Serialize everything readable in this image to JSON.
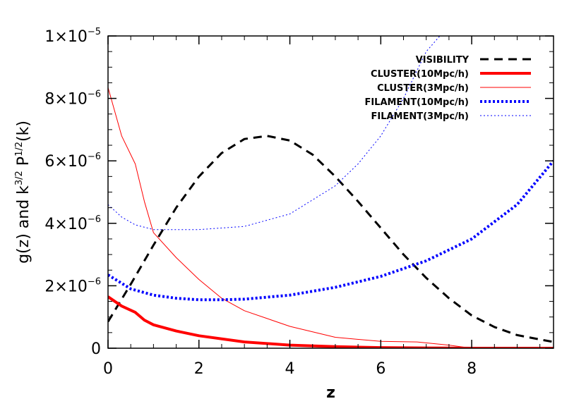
{
  "chart_data": {
    "type": "line",
    "xlabel": "z",
    "ylabel": {
      "main": "g(z)  and  k",
      "sup1": "3/2",
      "mid": " P",
      "sup2": "1/2",
      "tail": "(k)"
    },
    "xlim": [
      0,
      9.8
    ],
    "ylim": [
      0,
      1e-05
    ],
    "x_ticks": [
      {
        "value": 0,
        "label": "0"
      },
      {
        "value": 2,
        "label": "2"
      },
      {
        "value": 4,
        "label": "4"
      },
      {
        "value": 6,
        "label": "6"
      },
      {
        "value": 8,
        "label": "8"
      }
    ],
    "y_ticks": [
      {
        "value": 0,
        "label": "0",
        "mantissa": "",
        "exponent": ""
      },
      {
        "value": 2e-06,
        "label": "2×10⁻⁶",
        "mantissa": "2×10",
        "exponent": "−6"
      },
      {
        "value": 4e-06,
        "label": "4×10⁻⁶",
        "mantissa": "4×10",
        "exponent": "−6"
      },
      {
        "value": 6e-06,
        "label": "6×10⁻⁶",
        "mantissa": "6×10",
        "exponent": "−6"
      },
      {
        "value": 8e-06,
        "label": "8×10⁻⁶",
        "mantissa": "8×10",
        "exponent": "−6"
      },
      {
        "value": 1e-05,
        "label": "1×10⁻⁵",
        "mantissa": "1×10",
        "exponent": "−5"
      }
    ],
    "legend_position": "top-right",
    "series": [
      {
        "name": "VISIBILITY",
        "color": "#000000",
        "style": "dashed",
        "width": 3,
        "x": [
          0,
          0.5,
          1.0,
          1.5,
          2.0,
          2.5,
          3.0,
          3.5,
          4.0,
          4.5,
          5.0,
          5.5,
          6.0,
          6.5,
          7.0,
          7.5,
          8.0,
          8.5,
          9.0,
          9.5,
          9.8
        ],
        "y": [
          8.5e-07,
          2.05e-06,
          3.3e-06,
          4.5e-06,
          5.5e-06,
          6.25e-06,
          6.7e-06,
          6.8e-06,
          6.65e-06,
          6.2e-06,
          5.5e-06,
          4.7e-06,
          3.85e-06,
          3e-06,
          2.25e-06,
          1.6e-06,
          1.05e-06,
          6.8e-07,
          4.2e-07,
          2.8e-07,
          2e-07
        ]
      },
      {
        "name": "CLUSTER(10Mpc/h)",
        "color": "#ff0000",
        "style": "solid",
        "width": 4,
        "x": [
          0,
          0.3,
          0.6,
          0.8,
          1.0,
          1.5,
          2.0,
          3.0,
          4.0,
          5.0,
          6.0,
          7.0,
          8.0,
          9.0,
          9.8
        ],
        "y": [
          1.65e-06,
          1.35e-06,
          1.15e-06,
          9e-07,
          7.5e-07,
          5.5e-07,
          4e-07,
          2e-07,
          1e-07,
          5e-08,
          2e-08,
          1e-08,
          0,
          0,
          0
        ]
      },
      {
        "name": "CLUSTER(3Mpc/h)",
        "color": "#ff0000",
        "style": "solid",
        "width": 1,
        "x": [
          0,
          0.3,
          0.6,
          0.8,
          1.0,
          1.5,
          2.0,
          2.5,
          3.0,
          3.5,
          4.0,
          5.0,
          6.0,
          6.8,
          7.5,
          8.0,
          9.0,
          9.8
        ],
        "y": [
          8.35e-06,
          6.8e-06,
          5.9e-06,
          4.7e-06,
          3.7e-06,
          2.9e-06,
          2.2e-06,
          1.6e-06,
          1.2e-06,
          9.5e-07,
          7e-07,
          3.5e-07,
          2.2e-07,
          2e-07,
          1e-07,
          0,
          0,
          0
        ]
      },
      {
        "name": "FILAMENT(10Mpc/h)",
        "color": "#0000ff",
        "style": "dotted",
        "width": 4,
        "x": [
          0,
          0.5,
          1.0,
          1.5,
          2.0,
          2.5,
          3.0,
          4.0,
          5.0,
          6.0,
          7.0,
          8.0,
          9.0,
          9.8
        ],
        "y": [
          2.35e-06,
          1.9e-06,
          1.7e-06,
          1.6e-06,
          1.55e-06,
          1.55e-06,
          1.57e-06,
          1.7e-06,
          1.95e-06,
          2.3e-06,
          2.8e-06,
          3.5e-06,
          4.6e-06,
          6e-06
        ]
      },
      {
        "name": "FILAMENT(3Mpc/h)",
        "color": "#0000ff",
        "style": "dotted",
        "width": 1,
        "x": [
          0,
          0.3,
          0.6,
          1.0,
          1.5,
          2.0,
          3.0,
          4.0,
          5.0,
          5.5,
          6.0,
          6.5,
          7.0,
          7.3
        ],
        "y": [
          4.6e-06,
          4.2e-06,
          3.95e-06,
          3.8e-06,
          3.8e-06,
          3.8e-06,
          3.9e-06,
          4.3e-06,
          5.2e-06,
          5.9e-06,
          6.8e-06,
          8e-06,
          9.5e-06,
          1e-05
        ]
      }
    ]
  }
}
